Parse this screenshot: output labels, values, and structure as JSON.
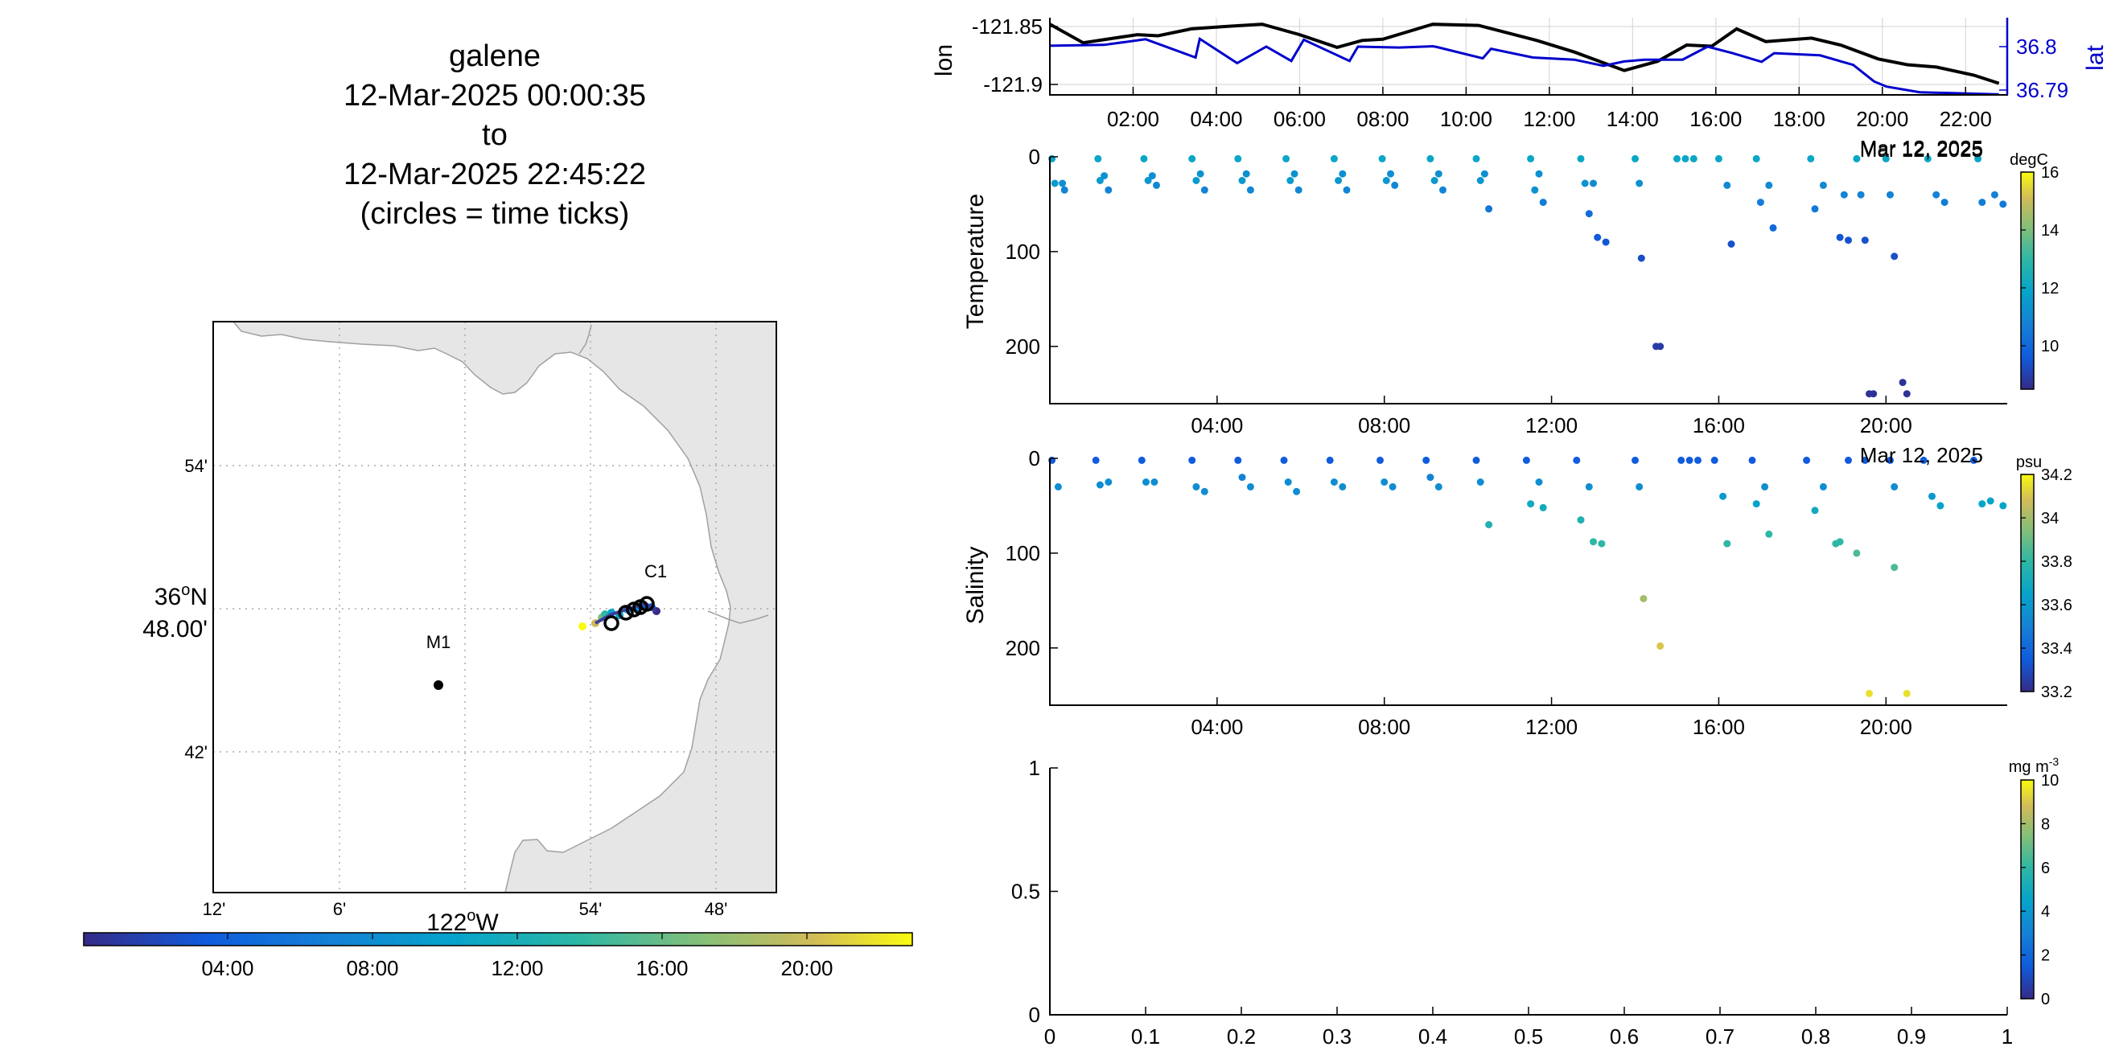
{
  "map_panel": {
    "title_lines": [
      "galene",
      "12-Mar-2025 00:00:35",
      "to",
      "12-Mar-2025 22:45:22",
      "(circles = time ticks)"
    ],
    "lon_ticks": [
      "12'",
      "6'",
      "54'",
      "48'"
    ],
    "lon_main_label": {
      "deg": "122",
      "dir": "W"
    },
    "lat_ticks": [
      "54'",
      "42'"
    ],
    "lat_main_label": {
      "deg": "36",
      "dir": "N",
      "min": "48.00'"
    },
    "stations": [
      {
        "name": "M1"
      },
      {
        "name": "C1"
      }
    ],
    "colorbar_ticks": [
      "04:00",
      "08:00",
      "12:00",
      "16:00",
      "20:00"
    ]
  },
  "chart_data": [
    {
      "type": "line",
      "panel": "position",
      "ylabel": "lon",
      "ylabel_right": "lat",
      "y_ticks": [
        "-121.85",
        "-121.9"
      ],
      "y_ticks_right": [
        "36.8",
        "36.79"
      ],
      "x_ticks": [
        "02:00",
        "04:00",
        "06:00",
        "08:00",
        "10:00",
        "12:00",
        "14:00",
        "16:00",
        "18:00",
        "20:00",
        "22:00"
      ],
      "x_date_label": "Mar 12, 2025",
      "series": [
        {
          "name": "lon",
          "color": "#000000",
          "x_hours": [
            0.0,
            0.8,
            2.1,
            2.6,
            3.4,
            4.2,
            5.1,
            6.0,
            6.9,
            7.5,
            8.0,
            9.2,
            10.3,
            11.7,
            12.6,
            13.8,
            14.6,
            15.3,
            15.9,
            16.5,
            17.2,
            18.3,
            19.0,
            19.9,
            20.6,
            21.3,
            22.2,
            22.8
          ],
          "values": [
            -121.848,
            -121.864,
            -121.857,
            -121.858,
            -121.852,
            -121.85,
            -121.848,
            -121.857,
            -121.868,
            -121.862,
            -121.861,
            -121.848,
            -121.849,
            -121.862,
            -121.872,
            -121.888,
            -121.88,
            -121.866,
            -121.867,
            -121.852,
            -121.863,
            -121.86,
            -121.866,
            -121.878,
            -121.883,
            -121.885,
            -121.892,
            -121.899
          ]
        },
        {
          "name": "lat",
          "color": "#0000cc",
          "x_hours": [
            0.0,
            1.3,
            2.3,
            3.5,
            3.6,
            4.5,
            5.2,
            5.8,
            6.1,
            7.2,
            7.4,
            8.4,
            9.2,
            9.3,
            10.4,
            10.6,
            11.6,
            12.6,
            13.3,
            13.8,
            14.3,
            15.2,
            15.8,
            16.4,
            17.1,
            17.4,
            18.5,
            19.3,
            19.8,
            20.1,
            20.9,
            22.8
          ],
          "values": [
            36.8002,
            36.8004,
            36.8017,
            36.7975,
            36.8018,
            36.7962,
            36.8,
            36.7967,
            36.8016,
            36.7967,
            36.8,
            36.7998,
            36.8001,
            36.7999,
            36.7973,
            36.7995,
            36.7975,
            36.797,
            36.7956,
            36.7966,
            36.797,
            36.797,
            36.8,
            36.7985,
            36.7965,
            36.7985,
            36.798,
            36.7958,
            36.792,
            36.7908,
            36.7895,
            36.789
          ]
        }
      ]
    },
    {
      "type": "scatter",
      "panel": "temperature",
      "ylabel": "Temperature",
      "y_ticks": [
        "0",
        "100",
        "200"
      ],
      "ylim": [
        0,
        250
      ],
      "y_reversed": true,
      "x_ticks": [
        "04:00",
        "08:00",
        "12:00",
        "16:00",
        "20:00"
      ],
      "x_date_label": "Mar 12, 2025",
      "colorbar": {
        "label": "degC",
        "ticks": [
          "16",
          "14",
          "12",
          "10"
        ],
        "range": [
          8.5,
          16.0
        ]
      },
      "points": [
        [
          0.05,
          2,
          12
        ],
        [
          0.12,
          28,
          11.6
        ],
        [
          0.3,
          28,
          11.2
        ],
        [
          0.35,
          35,
          10.8
        ],
        [
          1.15,
          2,
          12
        ],
        [
          1.2,
          25,
          11.6
        ],
        [
          1.3,
          20,
          11.3
        ],
        [
          1.4,
          35,
          10.8
        ],
        [
          2.25,
          2,
          12
        ],
        [
          2.35,
          25,
          11.5
        ],
        [
          2.45,
          20,
          11.2
        ],
        [
          2.55,
          30,
          10.9
        ],
        [
          3.4,
          2,
          12
        ],
        [
          3.5,
          25,
          11.6
        ],
        [
          3.6,
          18,
          11.3
        ],
        [
          3.7,
          35,
          10.8
        ],
        [
          4.5,
          2,
          12
        ],
        [
          4.6,
          25,
          11.5
        ],
        [
          4.7,
          18,
          11.2
        ],
        [
          4.8,
          35,
          10.9
        ],
        [
          5.65,
          2,
          12
        ],
        [
          5.75,
          25,
          11.6
        ],
        [
          5.85,
          18,
          11.3
        ],
        [
          5.95,
          35,
          10.9
        ],
        [
          6.8,
          2,
          12
        ],
        [
          6.9,
          25,
          11.5
        ],
        [
          7.0,
          18,
          11.2
        ],
        [
          7.1,
          35,
          10.9
        ],
        [
          7.95,
          2,
          12
        ],
        [
          8.05,
          25,
          11.5
        ],
        [
          8.15,
          18,
          11.2
        ],
        [
          8.25,
          30,
          10.9
        ],
        [
          9.1,
          2,
          12
        ],
        [
          9.2,
          25,
          11.5
        ],
        [
          9.3,
          18,
          11.2
        ],
        [
          9.4,
          35,
          10.8
        ],
        [
          10.2,
          2,
          12
        ],
        [
          10.3,
          25,
          11.5
        ],
        [
          10.4,
          18,
          11.2
        ],
        [
          10.5,
          55,
          10.4
        ],
        [
          11.5,
          2,
          12
        ],
        [
          11.6,
          35,
          11.3
        ],
        [
          11.7,
          18,
          11.2
        ],
        [
          11.8,
          48,
          10.6
        ],
        [
          12.7,
          2,
          12
        ],
        [
          12.8,
          28,
          11.3
        ],
        [
          12.9,
          60,
          10.1
        ],
        [
          13.0,
          28,
          11.0
        ],
        [
          13.1,
          85,
          9.6
        ],
        [
          13.3,
          90,
          9.5
        ],
        [
          14.0,
          2,
          12
        ],
        [
          14.1,
          28,
          11.2
        ],
        [
          14.15,
          107,
          9.3
        ],
        [
          14.5,
          200,
          8.9
        ],
        [
          14.6,
          200,
          8.9
        ],
        [
          15.0,
          2,
          12
        ],
        [
          15.2,
          2,
          12
        ],
        [
          15.4,
          2,
          12
        ],
        [
          16.0,
          2,
          12
        ],
        [
          16.2,
          30,
          11.0
        ],
        [
          16.3,
          92,
          9.4
        ],
        [
          16.9,
          2,
          12
        ],
        [
          17.0,
          48,
          10.7
        ],
        [
          17.2,
          30,
          11.0
        ],
        [
          17.3,
          75,
          10.0
        ],
        [
          18.2,
          2,
          12
        ],
        [
          18.3,
          55,
          10.5
        ],
        [
          18.5,
          30,
          11.0
        ],
        [
          18.9,
          85,
          9.5
        ],
        [
          19.0,
          40,
          10.8
        ],
        [
          19.1,
          88,
          9.4
        ],
        [
          19.3,
          2,
          12
        ],
        [
          19.4,
          40,
          10.8
        ],
        [
          19.5,
          88,
          9.4
        ],
        [
          19.6,
          250,
          8.7
        ],
        [
          19.7,
          250,
          8.7
        ],
        [
          20.0,
          2,
          12
        ],
        [
          20.1,
          40,
          10.8
        ],
        [
          20.2,
          105,
          9.3
        ],
        [
          20.4,
          238,
          8.7
        ],
        [
          20.5,
          250,
          8.7
        ],
        [
          21.0,
          2,
          12
        ],
        [
          21.2,
          40,
          10.8
        ],
        [
          21.4,
          48,
          10.6
        ],
        [
          22.2,
          2,
          12
        ],
        [
          22.3,
          48,
          10.6
        ],
        [
          22.6,
          40,
          10.8
        ],
        [
          22.8,
          50,
          10.5
        ]
      ]
    },
    {
      "type": "scatter",
      "panel": "salinity",
      "ylabel": "Salinity",
      "y_ticks": [
        "0",
        "100",
        "200"
      ],
      "ylim": [
        0,
        250
      ],
      "y_reversed": true,
      "x_ticks": [
        "04:00",
        "08:00",
        "12:00",
        "16:00",
        "20:00"
      ],
      "x_date_label": "Mar 12, 2025",
      "colorbar": {
        "label": "psu",
        "ticks": [
          "34.2",
          "34",
          "33.8",
          "33.6",
          "33.4",
          "33.2"
        ],
        "range": [
          33.2,
          34.2
        ]
      },
      "points": [
        [
          0.05,
          2,
          33.35
        ],
        [
          0.2,
          30,
          33.55
        ],
        [
          1.1,
          2,
          33.35
        ],
        [
          1.2,
          28,
          33.55
        ],
        [
          1.4,
          25,
          33.55
        ],
        [
          2.2,
          2,
          33.35
        ],
        [
          2.3,
          25,
          33.55
        ],
        [
          2.5,
          25,
          33.55
        ],
        [
          3.4,
          2,
          33.35
        ],
        [
          3.5,
          30,
          33.55
        ],
        [
          3.7,
          35,
          33.55
        ],
        [
          4.5,
          2,
          33.35
        ],
        [
          4.6,
          20,
          33.5
        ],
        [
          4.8,
          30,
          33.55
        ],
        [
          5.6,
          2,
          33.35
        ],
        [
          5.7,
          25,
          33.55
        ],
        [
          5.9,
          35,
          33.55
        ],
        [
          6.7,
          2,
          33.35
        ],
        [
          6.8,
          25,
          33.55
        ],
        [
          7.0,
          30,
          33.55
        ],
        [
          7.9,
          2,
          33.35
        ],
        [
          8.0,
          25,
          33.55
        ],
        [
          8.2,
          30,
          33.55
        ],
        [
          9.0,
          2,
          33.35
        ],
        [
          9.1,
          20,
          33.5
        ],
        [
          9.3,
          30,
          33.55
        ],
        [
          10.2,
          2,
          33.35
        ],
        [
          10.3,
          25,
          33.55
        ],
        [
          10.5,
          70,
          33.75
        ],
        [
          11.4,
          2,
          33.35
        ],
        [
          11.5,
          48,
          33.7
        ],
        [
          11.7,
          25,
          33.55
        ],
        [
          11.8,
          52,
          33.7
        ],
        [
          12.6,
          2,
          33.35
        ],
        [
          12.7,
          65,
          33.75
        ],
        [
          12.9,
          30,
          33.55
        ],
        [
          13.0,
          88,
          33.8
        ],
        [
          13.2,
          90,
          33.8
        ],
        [
          14.0,
          2,
          33.35
        ],
        [
          14.1,
          30,
          33.55
        ],
        [
          14.2,
          148,
          34.0
        ],
        [
          14.6,
          198,
          34.1
        ],
        [
          15.1,
          2,
          33.35
        ],
        [
          15.3,
          2,
          33.35
        ],
        [
          15.5,
          2,
          33.35
        ],
        [
          15.9,
          2,
          33.35
        ],
        [
          16.1,
          40,
          33.6
        ],
        [
          16.2,
          90,
          33.8
        ],
        [
          16.8,
          2,
          33.35
        ],
        [
          16.9,
          48,
          33.65
        ],
        [
          17.1,
          30,
          33.55
        ],
        [
          17.2,
          80,
          33.8
        ],
        [
          18.1,
          2,
          33.35
        ],
        [
          18.3,
          55,
          33.7
        ],
        [
          18.5,
          30,
          33.55
        ],
        [
          18.8,
          90,
          33.8
        ],
        [
          18.9,
          88,
          33.8
        ],
        [
          19.1,
          2,
          33.35
        ],
        [
          19.3,
          100,
          33.85
        ],
        [
          19.5,
          2,
          33.35
        ],
        [
          19.6,
          248,
          34.15
        ],
        [
          20.1,
          2,
          33.35
        ],
        [
          20.2,
          30,
          33.55
        ],
        [
          20.5,
          248,
          34.15
        ],
        [
          20.9,
          2,
          33.35
        ],
        [
          21.1,
          40,
          33.6
        ],
        [
          21.3,
          50,
          33.65
        ],
        [
          22.1,
          2,
          33.35
        ],
        [
          22.3,
          48,
          33.65
        ],
        [
          22.5,
          45,
          33.65
        ],
        [
          22.8,
          50,
          33.65
        ],
        [
          20.2,
          115,
          33.85
        ]
      ]
    },
    {
      "type": "scatter",
      "panel": "empty",
      "x_ticks": [
        "0",
        "0.1",
        "0.2",
        "0.3",
        "0.4",
        "0.5",
        "0.6",
        "0.7",
        "0.8",
        "0.9",
        "1"
      ],
      "y_ticks": [
        "0",
        "0.5",
        "1"
      ],
      "xlim": [
        0,
        1
      ],
      "ylim": [
        0,
        1
      ],
      "colorbar": {
        "label": "mg m",
        "label_exp": "-3",
        "ticks": [
          "10",
          "8",
          "6",
          "4",
          "2",
          "0"
        ],
        "range": [
          0,
          10
        ]
      },
      "points": []
    }
  ]
}
